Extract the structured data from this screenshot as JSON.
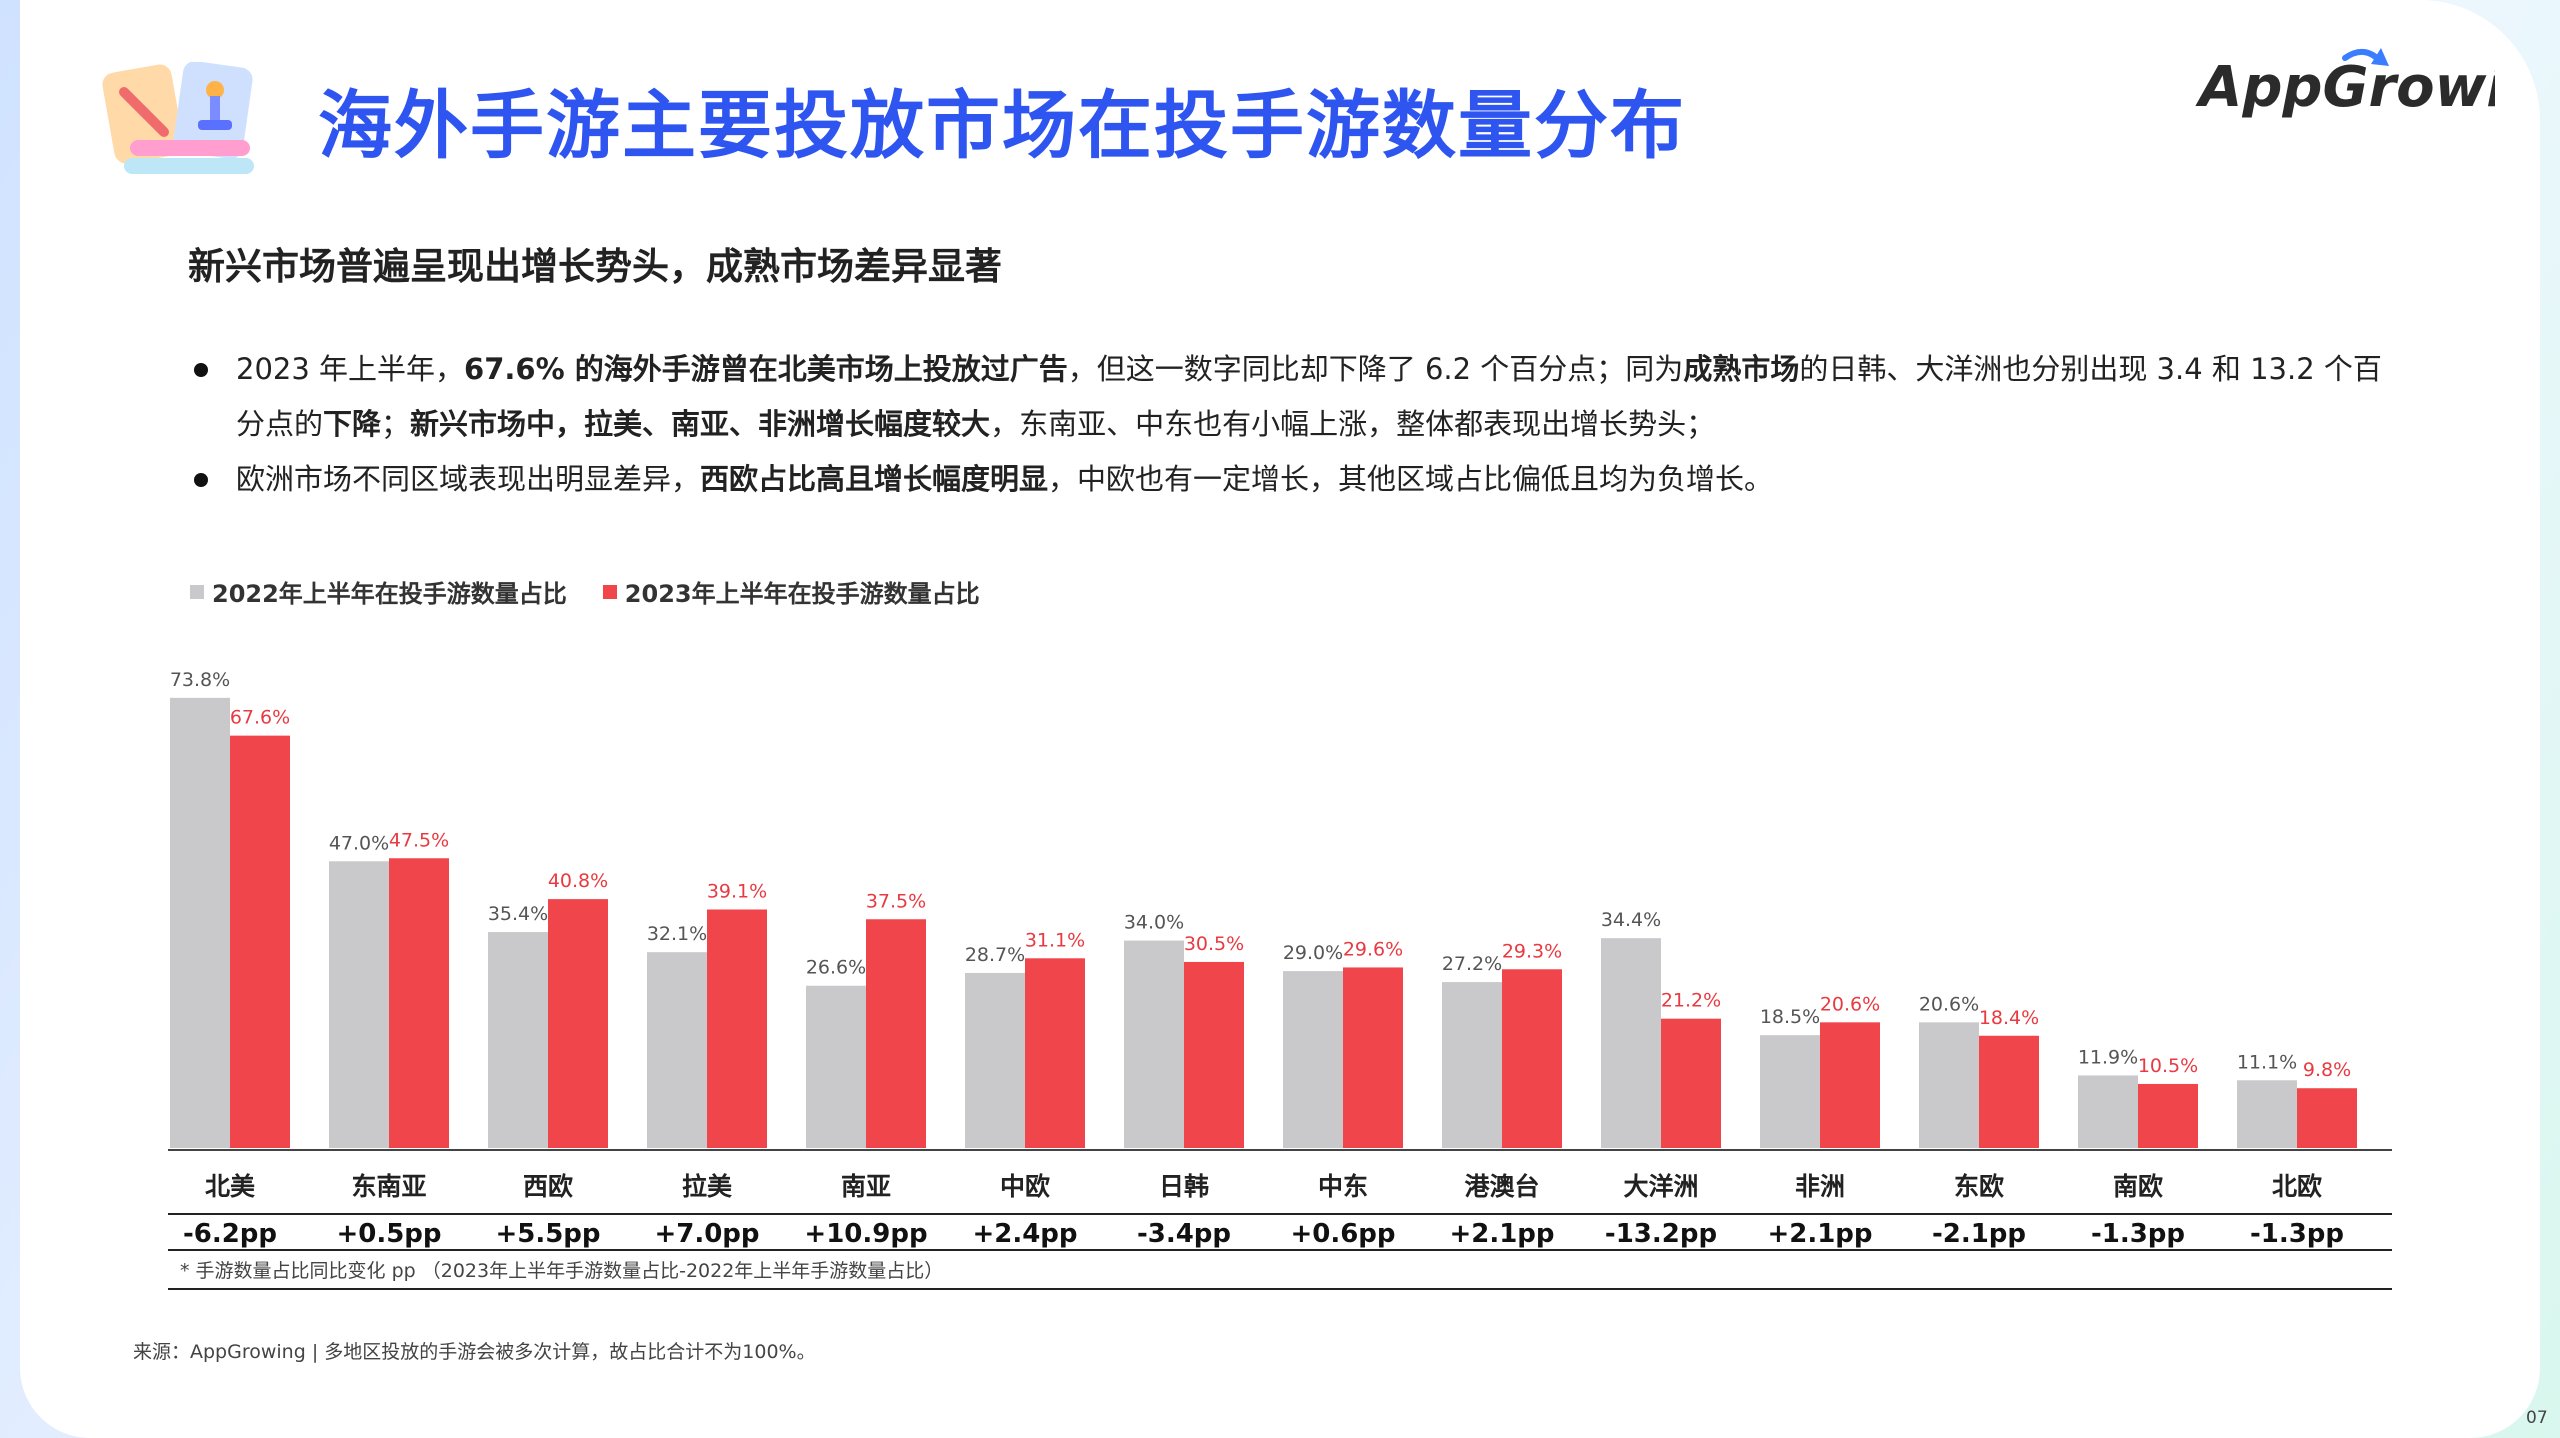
{
  "page": {
    "title": "海外手游主要投放市场在投手游数量分布",
    "logo_text": "AppGrowing",
    "subtitle": "新兴市场普遍呈现出增长势头，成熟市场差异显著",
    "bullets": [
      [
        {
          "t": "2023 年上半年，",
          "b": false
        },
        {
          "t": "67.6% 的海外手游曾在北美市场上投放过广告",
          "b": true
        },
        {
          "t": "，但这一数字同比却下降了 6.2 个百分点；同为",
          "b": false
        },
        {
          "t": "成熟市场",
          "b": true
        },
        {
          "t": "的日韩、大洋洲也分别出现 3.4 和 13.2 个百分点的",
          "b": false
        },
        {
          "t": "下降",
          "b": true
        },
        {
          "t": "；",
          "b": false
        },
        {
          "t": "新兴市场中，拉美、南亚、非洲增长幅度较大",
          "b": true
        },
        {
          "t": "，东南亚、中东也有小幅上涨，整体都表现出增长势头；",
          "b": false
        }
      ],
      [
        {
          "t": "欧洲市场不同区域表现出明显差异，",
          "b": false
        },
        {
          "t": "西欧占比高且增长幅度明显",
          "b": true
        },
        {
          "t": "，中欧也有一定增长，其他区域占比偏低且均为负增长。",
          "b": false
        }
      ]
    ],
    "footnote": "* 手游数量占比同比变化 pp （2023年上半年手游数量占比-2022年上半年手游数量占比）",
    "source": "来源：AppGrowing | 多地区投放的手游会被多次计算，故占比合计不为100%。",
    "page_number": "07"
  },
  "colors": {
    "title": "#2f55f0",
    "series_2022": "#c9c9cc",
    "series_2023": "#f0464b",
    "label_2022": "#555555",
    "label_2023": "#e83a40"
  },
  "chart_data": {
    "type": "bar",
    "categories": [
      "北美",
      "东南亚",
      "西欧",
      "拉美",
      "南亚",
      "中欧",
      "日韩",
      "中东",
      "港澳台",
      "大洋洲",
      "非洲",
      "东欧",
      "南欧",
      "北欧"
    ],
    "series": [
      {
        "name": "2022年上半年在投手游数量占比",
        "values": [
          73.8,
          47.0,
          35.4,
          32.1,
          26.6,
          28.7,
          34.0,
          29.0,
          27.2,
          34.4,
          18.5,
          20.6,
          11.9,
          11.1
        ]
      },
      {
        "name": "2023年上半年在投手游数量占比",
        "values": [
          67.6,
          47.5,
          40.8,
          39.1,
          37.5,
          31.1,
          30.5,
          29.6,
          29.3,
          21.2,
          20.6,
          18.4,
          10.5,
          9.8
        ]
      }
    ],
    "change_labels": [
      "-6.2pp",
      "+0.5pp",
      "+5.5pp",
      "+7.0pp",
      "+10.9pp",
      "+2.4pp",
      "-3.4pp",
      "+0.6pp",
      "+2.1pp",
      "-13.2pp",
      "+2.1pp",
      "-2.1pp",
      "-1.3pp",
      "-1.3pp"
    ],
    "value_format": "percent_1dp",
    "ylim": [
      0,
      80
    ],
    "grid": false,
    "legend_position": "top-left"
  }
}
